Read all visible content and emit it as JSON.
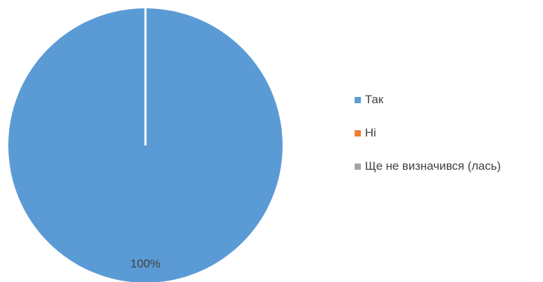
{
  "chart_data": {
    "type": "pie",
    "categories": [
      "Так",
      "Ні",
      "Ще не визначився (лась)"
    ],
    "values": [
      100,
      0,
      0
    ],
    "colors": [
      "#5b9bd5",
      "#ed7d31",
      "#a5a5a5"
    ],
    "data_labels": [
      "100%",
      "",
      ""
    ],
    "legend_position": "right"
  }
}
